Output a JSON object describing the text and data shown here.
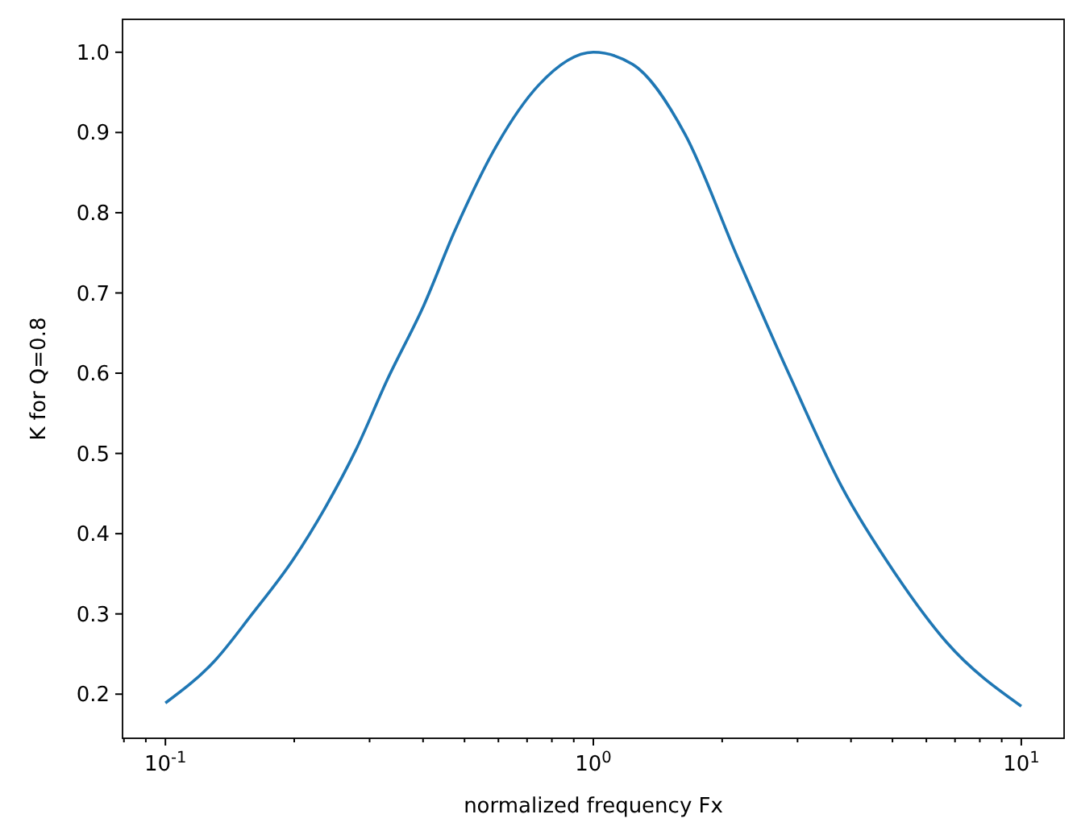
{
  "chart_data": {
    "type": "line",
    "xlabel": "normalized frequency Fx",
    "ylabel": "K for Q=0.8",
    "log": "x",
    "grid": false,
    "xlim": [
      0.0794,
      12.59
    ],
    "ylim": [
      0.145,
      1.041
    ],
    "xticks": [
      {
        "value": 0.1,
        "label": "10$^{-1}$"
      },
      {
        "value": 1,
        "label": "10$^{0}$"
      },
      {
        "value": 10,
        "label": "10$^{1}$"
      },
      {
        "value": 0.08,
        "label": null
      },
      {
        "value": 0.09,
        "label": null
      },
      {
        "value": 0.2,
        "label": null
      },
      {
        "value": 0.3,
        "label": null
      },
      {
        "value": 0.4,
        "label": null
      },
      {
        "value": 0.5,
        "label": null
      },
      {
        "value": 0.6,
        "label": null
      },
      {
        "value": 0.7,
        "label": null
      },
      {
        "value": 0.8,
        "label": null
      },
      {
        "value": 0.9,
        "label": null
      },
      {
        "value": 2,
        "label": null
      },
      {
        "value": 3,
        "label": null
      },
      {
        "value": 4,
        "label": null
      },
      {
        "value": 5,
        "label": null
      },
      {
        "value": 6,
        "label": null
      },
      {
        "value": 7,
        "label": null
      },
      {
        "value": 8,
        "label": null
      },
      {
        "value": 9,
        "label": null
      }
    ],
    "yticks": [
      0.2,
      0.3,
      0.4,
      0.5,
      0.6,
      0.7,
      0.8,
      0.9,
      {
        "value": 1,
        "label": "1.0"
      }
    ],
    "series": [
      {
        "color": "#1f77b4",
        "x": [
          0.1,
          0.1306,
          0.159,
          0.199,
          0.236,
          0.279,
          0.33,
          0.402,
          0.475,
          0.596,
          0.745,
          1,
          1.235,
          1.637,
          2.17,
          2.87,
          3.81,
          5.05,
          6.68,
          10
        ],
        "values": [
          0.189,
          0.242,
          0.299,
          0.368,
          0.432,
          0.505,
          0.592,
          0.685,
          0.778,
          0.885,
          0.959,
          1.0,
          0.985,
          0.898,
          0.745,
          0.598,
          0.458,
          0.352,
          0.265,
          0.185
        ]
      }
    ]
  }
}
